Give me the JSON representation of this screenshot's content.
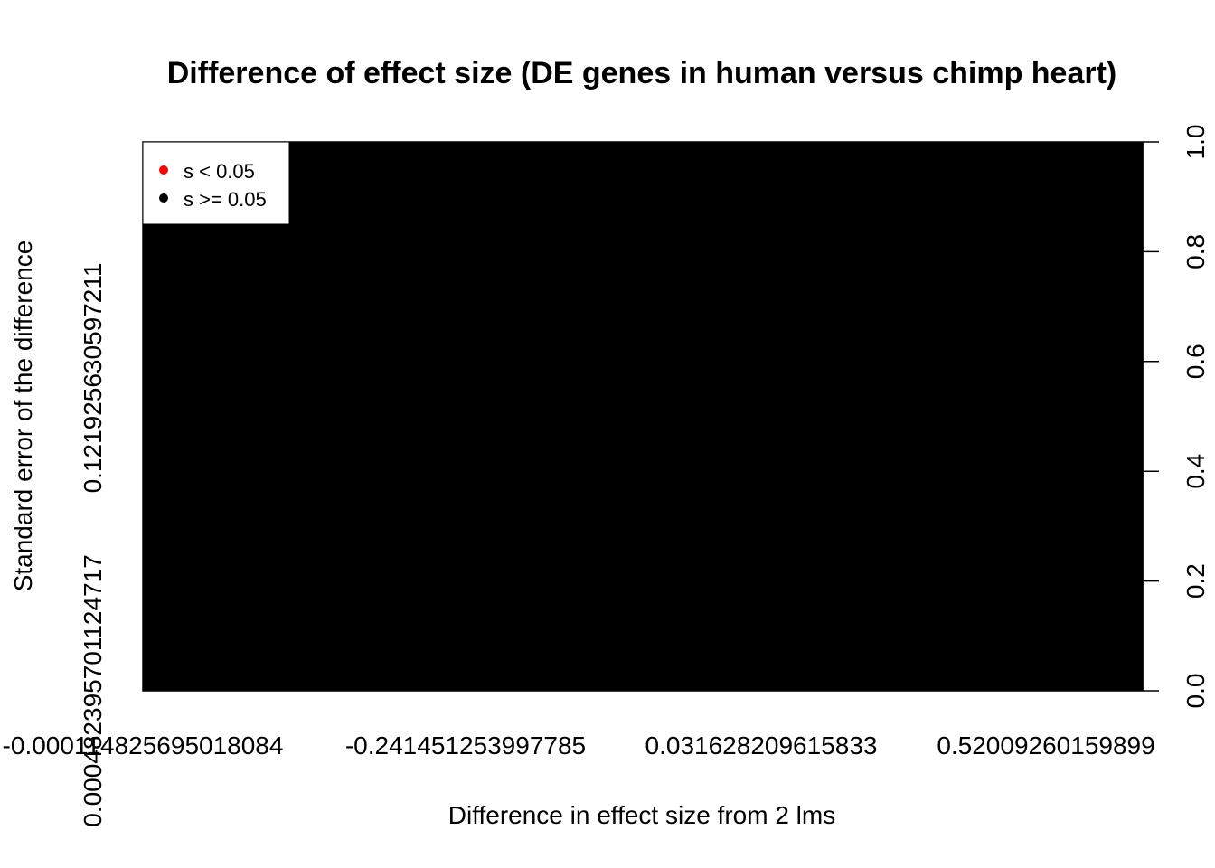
{
  "chart_data": {
    "type": "scatter",
    "title": "Difference of effect size (DE genes in human versus chimp heart)",
    "xlabel": "Difference in effect size from 2 lms",
    "ylabel": "Standard error of the difference",
    "x_tick_labels": [
      "-0.000114825695018084",
      "-0.241451253997785",
      "0.031628209615833",
      "0.52009260159899"
    ],
    "y_tick_labels": [
      "0.000482395701124717",
      "0.121925630597211"
    ],
    "right_axis_ticks": [
      "0.0",
      "0.2",
      "0.4",
      "0.6",
      "0.8",
      "1.0"
    ],
    "right_axis_ylim": [
      0,
      1
    ],
    "plot_area_fill": "#000000",
    "legend": {
      "placement": "top-left",
      "entries": [
        {
          "label": "s < 0.05",
          "color": "#ff0000"
        },
        {
          "label": "s >= 0.05",
          "color": "#000000"
        }
      ]
    }
  }
}
